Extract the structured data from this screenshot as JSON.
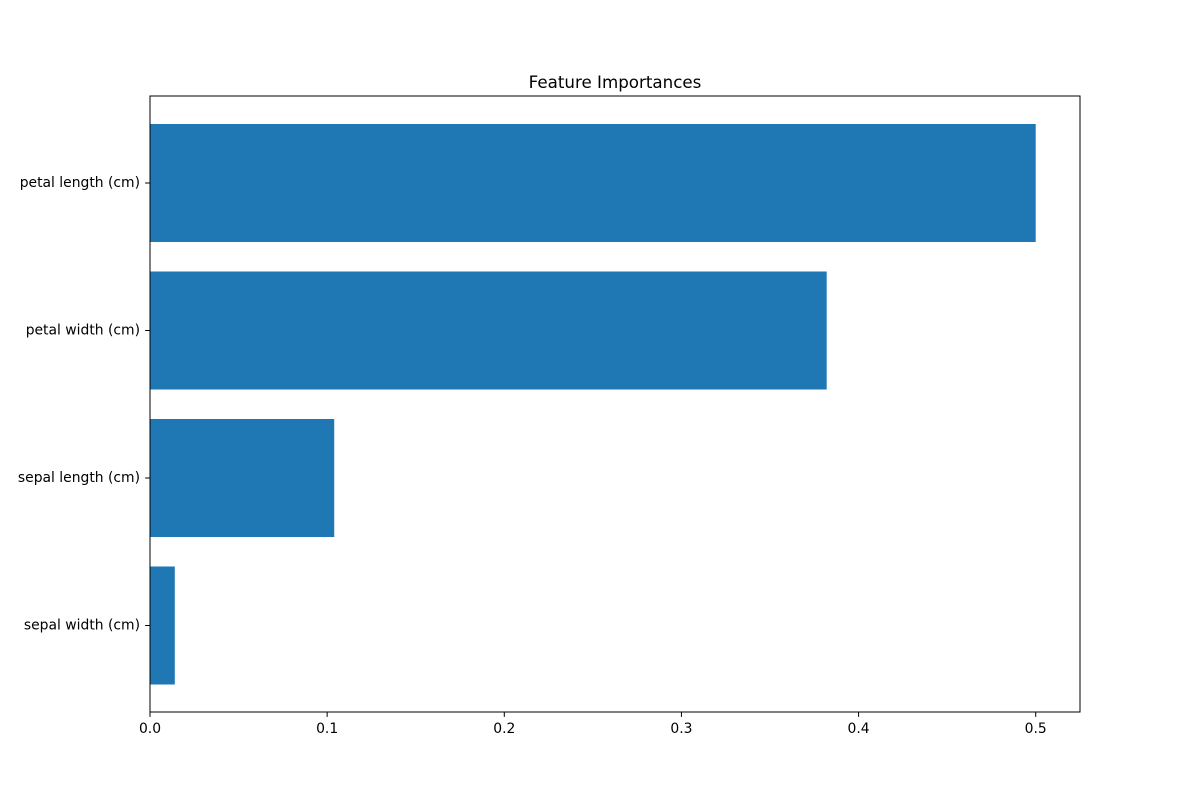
{
  "chart_data": {
    "type": "bar",
    "orientation": "horizontal",
    "title": "Feature Importances",
    "xlabel": "",
    "ylabel": "",
    "categories": [
      "sepal width (cm)",
      "sepal length (cm)",
      "petal width (cm)",
      "petal length (cm)"
    ],
    "values": [
      0.014,
      0.104,
      0.382,
      0.5
    ],
    "xlim": [
      0,
      0.525
    ],
    "xticks": [
      0.0,
      0.1,
      0.2,
      0.3,
      0.4,
      0.5
    ],
    "xtick_labels": [
      "0.0",
      "0.1",
      "0.2",
      "0.3",
      "0.4",
      "0.5"
    ],
    "bar_color": "#1f77b4",
    "grid": false,
    "legend": "none"
  }
}
